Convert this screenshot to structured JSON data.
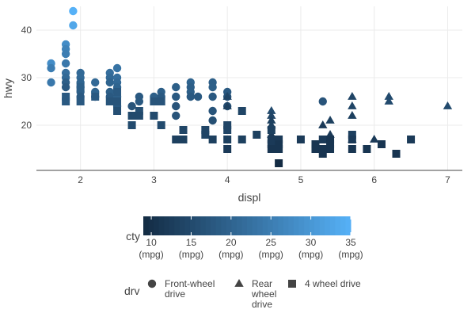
{
  "chart_data": {
    "type": "scatter",
    "xlabel": "displ",
    "ylabel": "hwy",
    "xlim": [
      1.4,
      7.2
    ],
    "ylim": [
      10.5,
      45
    ],
    "x_ticks": [
      2,
      3,
      4,
      5,
      6,
      7
    ],
    "y_ticks": [
      20,
      30,
      40
    ],
    "grid": true,
    "color_legend": {
      "title": "cty",
      "range": [
        9,
        35
      ],
      "low_color": "#132B43",
      "high_color": "#56B1F7",
      "ticks": [
        {
          "value": 10,
          "label": "10",
          "unit": "(mpg)"
        },
        {
          "value": 15,
          "label": "15",
          "unit": "(mpg)"
        },
        {
          "value": 20,
          "label": "20",
          "unit": "(mpg)"
        },
        {
          "value": 25,
          "label": "25",
          "unit": "(mpg)"
        },
        {
          "value": 30,
          "label": "30",
          "unit": "(mpg)"
        },
        {
          "value": 35,
          "label": "35",
          "unit": "(mpg)"
        }
      ]
    },
    "shape_legend": {
      "title": "drv",
      "items": [
        {
          "shape": "circle",
          "lines": [
            "Front-wheel",
            "drive"
          ]
        },
        {
          "shape": "triangle",
          "lines": [
            "Rear",
            "wheel",
            "drive"
          ]
        },
        {
          "shape": "square",
          "lines": [
            "4 wheel drive"
          ]
        }
      ]
    },
    "series": [
      {
        "shape": "circle",
        "points": [
          [
            1.6,
            33,
            28
          ],
          [
            1.6,
            32,
            25
          ],
          [
            1.6,
            29,
            24
          ],
          [
            1.8,
            37,
            28
          ],
          [
            1.8,
            36,
            26
          ],
          [
            1.8,
            35,
            25
          ],
          [
            1.8,
            33,
            24
          ],
          [
            1.8,
            31,
            22
          ],
          [
            1.8,
            30,
            21
          ],
          [
            1.8,
            29,
            19
          ],
          [
            1.8,
            28,
            18
          ],
          [
            1.9,
            44,
            35
          ],
          [
            1.9,
            41,
            33
          ],
          [
            2.0,
            31,
            21
          ],
          [
            2.0,
            30,
            21
          ],
          [
            2.0,
            29,
            20
          ],
          [
            2.0,
            28,
            19
          ],
          [
            2.0,
            27,
            19
          ],
          [
            2.0,
            26,
            18
          ],
          [
            2.2,
            29,
            21
          ],
          [
            2.2,
            27,
            20
          ],
          [
            2.2,
            26,
            19
          ],
          [
            2.4,
            31,
            22
          ],
          [
            2.4,
            30,
            21
          ],
          [
            2.4,
            29,
            20
          ],
          [
            2.4,
            27,
            19
          ],
          [
            2.4,
            26,
            18
          ],
          [
            2.5,
            32,
            23
          ],
          [
            2.5,
            30,
            22
          ],
          [
            2.5,
            29,
            21
          ],
          [
            2.5,
            28,
            20
          ],
          [
            2.5,
            26,
            19
          ],
          [
            2.5,
            24,
            18
          ],
          [
            2.7,
            24,
            17
          ],
          [
            2.8,
            26,
            18
          ],
          [
            2.8,
            25,
            18
          ],
          [
            3.0,
            26,
            19
          ],
          [
            3.1,
            27,
            19
          ],
          [
            3.1,
            26,
            18
          ],
          [
            3.3,
            28,
            19
          ],
          [
            3.3,
            26,
            18
          ],
          [
            3.3,
            24,
            17
          ],
          [
            3.3,
            22,
            17
          ],
          [
            3.5,
            29,
            20
          ],
          [
            3.5,
            28,
            19
          ],
          [
            3.5,
            27,
            19
          ],
          [
            3.5,
            26,
            18
          ],
          [
            3.6,
            26,
            18
          ],
          [
            3.8,
            29,
            19
          ],
          [
            3.8,
            28,
            19
          ],
          [
            3.8,
            26,
            18
          ],
          [
            3.8,
            23,
            17
          ],
          [
            3.8,
            21,
            16
          ],
          [
            4.0,
            27,
            18
          ],
          [
            4.0,
            26,
            17
          ],
          [
            4.0,
            24,
            16
          ],
          [
            5.3,
            25,
            17
          ]
        ]
      },
      {
        "shape": "triangle",
        "points": [
          [
            4.0,
            26,
            14
          ],
          [
            4.0,
            24,
            13
          ],
          [
            4.6,
            23,
            15
          ],
          [
            4.6,
            22,
            14
          ],
          [
            4.6,
            21,
            13
          ],
          [
            4.6,
            20,
            13
          ],
          [
            4.6,
            18,
            12
          ],
          [
            5.3,
            20,
            12
          ],
          [
            5.4,
            21,
            13
          ],
          [
            5.4,
            18,
            12
          ],
          [
            5.7,
            26,
            14
          ],
          [
            5.7,
            24,
            14
          ],
          [
            5.7,
            22,
            13
          ],
          [
            5.7,
            17,
            11
          ],
          [
            6.0,
            17,
            12
          ],
          [
            6.2,
            26,
            15
          ],
          [
            6.2,
            25,
            15
          ],
          [
            7.0,
            24,
            15
          ]
        ]
      },
      {
        "shape": "square",
        "points": [
          [
            1.8,
            26,
            18
          ],
          [
            1.8,
            25,
            18
          ],
          [
            2.0,
            28,
            19
          ],
          [
            2.0,
            25,
            18
          ],
          [
            2.2,
            26,
            18
          ],
          [
            2.4,
            25,
            17
          ],
          [
            2.5,
            27,
            18
          ],
          [
            2.5,
            25,
            17
          ],
          [
            2.5,
            23,
            16
          ],
          [
            2.7,
            22,
            15
          ],
          [
            2.7,
            20,
            15
          ],
          [
            2.8,
            23,
            16
          ],
          [
            2.8,
            22,
            15
          ],
          [
            3.0,
            25,
            17
          ],
          [
            3.0,
            22,
            15
          ],
          [
            3.1,
            25,
            17
          ],
          [
            3.1,
            20,
            15
          ],
          [
            3.3,
            17,
            13
          ],
          [
            3.4,
            17,
            13
          ],
          [
            3.4,
            19,
            14
          ],
          [
            3.7,
            19,
            14
          ],
          [
            3.7,
            18,
            14
          ],
          [
            3.8,
            17,
            13
          ],
          [
            4.0,
            20,
            14
          ],
          [
            4.0,
            19,
            14
          ],
          [
            4.0,
            17,
            13
          ],
          [
            4.0,
            15,
            12
          ],
          [
            4.2,
            23,
            14
          ],
          [
            4.2,
            17,
            13
          ],
          [
            4.4,
            18,
            13
          ],
          [
            4.6,
            19,
            13
          ],
          [
            4.6,
            17,
            12
          ],
          [
            4.6,
            16,
            12
          ],
          [
            4.6,
            15,
            11
          ],
          [
            4.7,
            17,
            12
          ],
          [
            4.7,
            16,
            11
          ],
          [
            4.7,
            15,
            11
          ],
          [
            4.7,
            12,
            9
          ],
          [
            5.0,
            17,
            12
          ],
          [
            5.2,
            16,
            11
          ],
          [
            5.2,
            15,
            11
          ],
          [
            5.3,
            17,
            12
          ],
          [
            5.3,
            15,
            11
          ],
          [
            5.3,
            14,
            11
          ],
          [
            5.4,
            17,
            11
          ],
          [
            5.4,
            15,
            11
          ],
          [
            5.4,
            16,
            11
          ],
          [
            5.7,
            18,
            13
          ],
          [
            5.7,
            17,
            12
          ],
          [
            5.7,
            15,
            11
          ],
          [
            5.9,
            15,
            11
          ],
          [
            6.1,
            16,
            11
          ],
          [
            6.5,
            17,
            12
          ],
          [
            6.3,
            14,
            11
          ]
        ]
      }
    ]
  }
}
